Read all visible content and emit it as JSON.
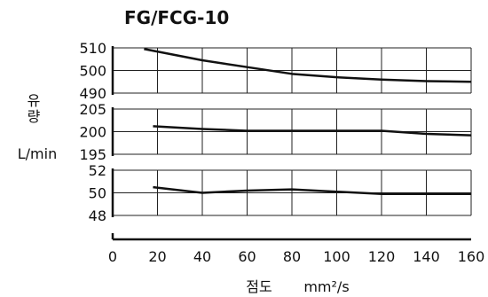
{
  "chart_data": [
    {
      "type": "line",
      "title": "FG/FCG-10",
      "ylabel_top": "유",
      "ylabel_bottom": "량",
      "yunit": "L/min",
      "xlabel": "점도",
      "xunit": "mm²/s",
      "x_ticks": [
        "0",
        "20",
        "40",
        "60",
        "80",
        "100",
        "120",
        "140",
        "160"
      ],
      "xlim": [
        0,
        160
      ],
      "grid": true,
      "panels": [
        {
          "ylim": [
            490,
            510
          ],
          "y_ticks": [
            "510",
            "500",
            "490"
          ],
          "series": [
            {
              "x": [
                14,
                40,
                60,
                80,
                100,
                120,
                140,
                160
              ],
              "y": [
                509.5,
                504.5,
                501.5,
                498.5,
                497,
                496,
                495.3,
                495
              ]
            }
          ]
        },
        {
          "ylim": [
            195,
            205
          ],
          "y_ticks": [
            "205",
            "200",
            "195"
          ],
          "series": [
            {
              "x": [
                18,
                40,
                60,
                80,
                100,
                120,
                140,
                160
              ],
              "y": [
                201.2,
                200.6,
                200.2,
                200.2,
                200.2,
                200.2,
                199.5,
                199.2
              ]
            }
          ]
        },
        {
          "ylim": [
            48,
            52
          ],
          "y_ticks": [
            "52",
            "50",
            "48"
          ],
          "series": [
            {
              "x": [
                18,
                40,
                60,
                80,
                100,
                120,
                140,
                160
              ],
              "y": [
                50.5,
                50,
                50.2,
                50.3,
                50.1,
                49.9,
                49.9,
                49.9
              ]
            }
          ]
        }
      ]
    }
  ]
}
